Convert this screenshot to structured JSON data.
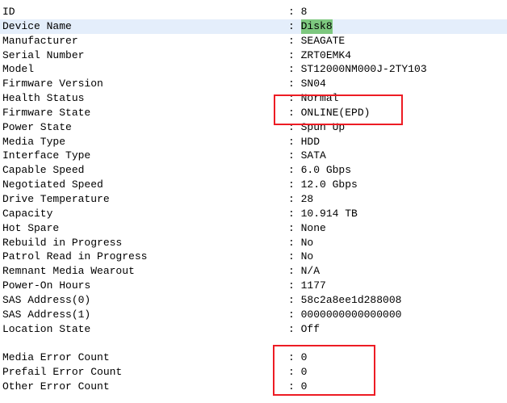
{
  "colors": {
    "background": "#ffffff",
    "text": "#000000",
    "selected_row_bg": "#e4eefb",
    "match_highlight_bg": "#7dc87f",
    "annotation_box_red": "#ed1c24"
  },
  "separator": ": ",
  "attributes": [
    {
      "label": "ID",
      "value": "8"
    },
    {
      "label": "Device Name",
      "value": "Disk8",
      "selected": true,
      "match": true
    },
    {
      "label": "Manufacturer",
      "value": "SEAGATE"
    },
    {
      "label": "Serial Number",
      "value": "ZRT0EMK4"
    },
    {
      "label": "Model",
      "value": "ST12000NM000J-2TY103"
    },
    {
      "label": "Firmware Version",
      "value": "SN04"
    },
    {
      "label": "Health Status",
      "value": "Normal"
    },
    {
      "label": "Firmware State",
      "value": "ONLINE(EPD)"
    },
    {
      "label": "Power State",
      "value": "Spun Up"
    },
    {
      "label": "Media Type",
      "value": "HDD"
    },
    {
      "label": "Interface Type",
      "value": "SATA"
    },
    {
      "label": "Capable Speed",
      "value": "6.0 Gbps"
    },
    {
      "label": "Negotiated Speed",
      "value": "12.0 Gbps"
    },
    {
      "label": "Drive Temperature",
      "value": "28"
    },
    {
      "label": "Capacity",
      "value": "10.914 TB"
    },
    {
      "label": "Hot Spare",
      "value": "None"
    },
    {
      "label": "Rebuild in Progress",
      "value": "No"
    },
    {
      "label": "Patrol Read in Progress",
      "value": "No"
    },
    {
      "label": "Remnant Media Wearout",
      "value": "N/A"
    },
    {
      "label": "Power-On Hours",
      "value": "1177"
    },
    {
      "label": "SAS Address(0)",
      "value": "58c2a8ee1d288008"
    },
    {
      "label": "SAS Address(1)",
      "value": "0000000000000000"
    },
    {
      "label": "Location State",
      "value": "Off"
    },
    {
      "blank": true
    },
    {
      "label": "Media Error Count",
      "value": "0"
    },
    {
      "label": "Prefail Error Count",
      "value": "0"
    },
    {
      "label": "Other Error Count",
      "value": "0"
    }
  ]
}
